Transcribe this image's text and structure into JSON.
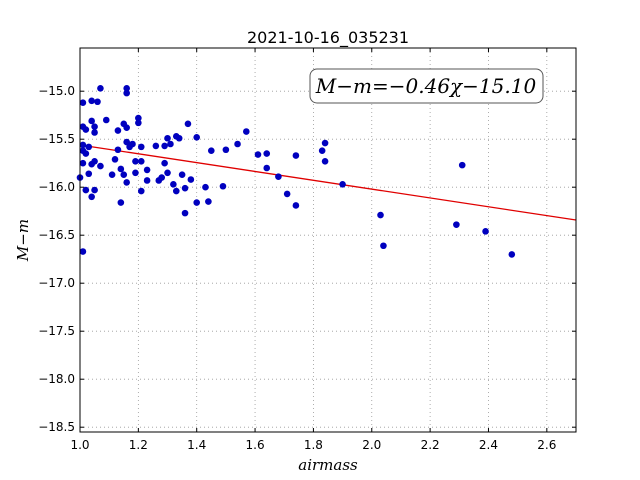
{
  "chart_data": {
    "type": "scatter",
    "title": "2021-10-16_035231",
    "xlabel": "airmass",
    "ylabel": "M−m",
    "xlim": [
      1.0,
      2.7
    ],
    "ylim": [
      -18.55,
      -14.55
    ],
    "y_inverted": true,
    "grid": true,
    "x_ticks": [
      1.0,
      1.2,
      1.4,
      1.6,
      1.8,
      2.0,
      2.2,
      2.4,
      2.6
    ],
    "x_tick_labels": [
      "1.0",
      "1.2",
      "1.4",
      "1.6",
      "1.8",
      "2.0",
      "2.2",
      "2.4",
      "2.6"
    ],
    "y_ticks": [
      -15.0,
      -15.5,
      -16.0,
      -16.5,
      -17.0,
      -17.5,
      -18.0,
      -18.5
    ],
    "y_tick_labels": [
      "−15.0",
      "−15.5",
      "−16.0",
      "−16.5",
      "−17.0",
      "−17.5",
      "−18.0",
      "−18.5"
    ],
    "annotation": "M−m=−0.46χ−15.10",
    "colors": {
      "points": "#0000bf",
      "fit": "#e00000",
      "grid": "#9a9a9a"
    },
    "fit": {
      "slope": -0.46,
      "intercept": -15.1
    },
    "points": [
      [
        1.0,
        -15.9
      ],
      [
        1.01,
        -15.56
      ],
      [
        1.01,
        -15.62
      ],
      [
        1.01,
        -15.75
      ],
      [
        1.01,
        -15.37
      ],
      [
        1.01,
        -15.12
      ],
      [
        1.01,
        -16.67
      ],
      [
        1.02,
        -15.4
      ],
      [
        1.02,
        -15.65
      ],
      [
        1.02,
        -16.03
      ],
      [
        1.03,
        -15.58
      ],
      [
        1.03,
        -15.86
      ],
      [
        1.04,
        -15.1
      ],
      [
        1.04,
        -15.31
      ],
      [
        1.04,
        -15.76
      ],
      [
        1.04,
        -16.1
      ],
      [
        1.05,
        -15.37
      ],
      [
        1.05,
        -15.43
      ],
      [
        1.05,
        -15.73
      ],
      [
        1.05,
        -16.03
      ],
      [
        1.06,
        -15.11
      ],
      [
        1.07,
        -14.97
      ],
      [
        1.07,
        -15.78
      ],
      [
        1.09,
        -15.3
      ],
      [
        1.11,
        -15.87
      ],
      [
        1.12,
        -15.71
      ],
      [
        1.13,
        -15.41
      ],
      [
        1.13,
        -15.61
      ],
      [
        1.14,
        -15.81
      ],
      [
        1.14,
        -16.16
      ],
      [
        1.15,
        -15.34
      ],
      [
        1.15,
        -15.87
      ],
      [
        1.16,
        -14.97
      ],
      [
        1.16,
        -15.02
      ],
      [
        1.16,
        -15.38
      ],
      [
        1.16,
        -15.53
      ],
      [
        1.16,
        -15.95
      ],
      [
        1.17,
        -15.58
      ],
      [
        1.18,
        -15.55
      ],
      [
        1.19,
        -15.73
      ],
      [
        1.19,
        -15.85
      ],
      [
        1.2,
        -15.28
      ],
      [
        1.2,
        -15.33
      ],
      [
        1.21,
        -15.58
      ],
      [
        1.21,
        -15.73
      ],
      [
        1.21,
        -16.04
      ],
      [
        1.23,
        -15.82
      ],
      [
        1.23,
        -15.93
      ],
      [
        1.26,
        -15.57
      ],
      [
        1.27,
        -15.93
      ],
      [
        1.28,
        -15.9
      ],
      [
        1.29,
        -15.57
      ],
      [
        1.29,
        -15.75
      ],
      [
        1.3,
        -15.49
      ],
      [
        1.3,
        -15.85
      ],
      [
        1.31,
        -15.55
      ],
      [
        1.32,
        -15.97
      ],
      [
        1.33,
        -15.47
      ],
      [
        1.33,
        -16.04
      ],
      [
        1.34,
        -15.49
      ],
      [
        1.35,
        -15.87
      ],
      [
        1.36,
        -16.01
      ],
      [
        1.36,
        -16.27
      ],
      [
        1.37,
        -15.34
      ],
      [
        1.38,
        -15.92
      ],
      [
        1.4,
        -15.48
      ],
      [
        1.4,
        -16.16
      ],
      [
        1.43,
        -16.0
      ],
      [
        1.44,
        -16.15
      ],
      [
        1.45,
        -15.62
      ],
      [
        1.49,
        -15.99
      ],
      [
        1.5,
        -15.61
      ],
      [
        1.54,
        -15.55
      ],
      [
        1.57,
        -15.42
      ],
      [
        1.61,
        -15.66
      ],
      [
        1.64,
        -15.65
      ],
      [
        1.64,
        -15.8
      ],
      [
        1.68,
        -15.89
      ],
      [
        1.71,
        -16.07
      ],
      [
        1.74,
        -15.67
      ],
      [
        1.74,
        -16.19
      ],
      [
        1.83,
        -15.62
      ],
      [
        1.84,
        -15.54
      ],
      [
        1.84,
        -15.73
      ],
      [
        1.9,
        -15.97
      ],
      [
        2.03,
        -16.29
      ],
      [
        2.04,
        -16.61
      ],
      [
        2.29,
        -16.39
      ],
      [
        2.31,
        -15.77
      ],
      [
        2.39,
        -16.46
      ],
      [
        2.48,
        -16.7
      ]
    ]
  }
}
